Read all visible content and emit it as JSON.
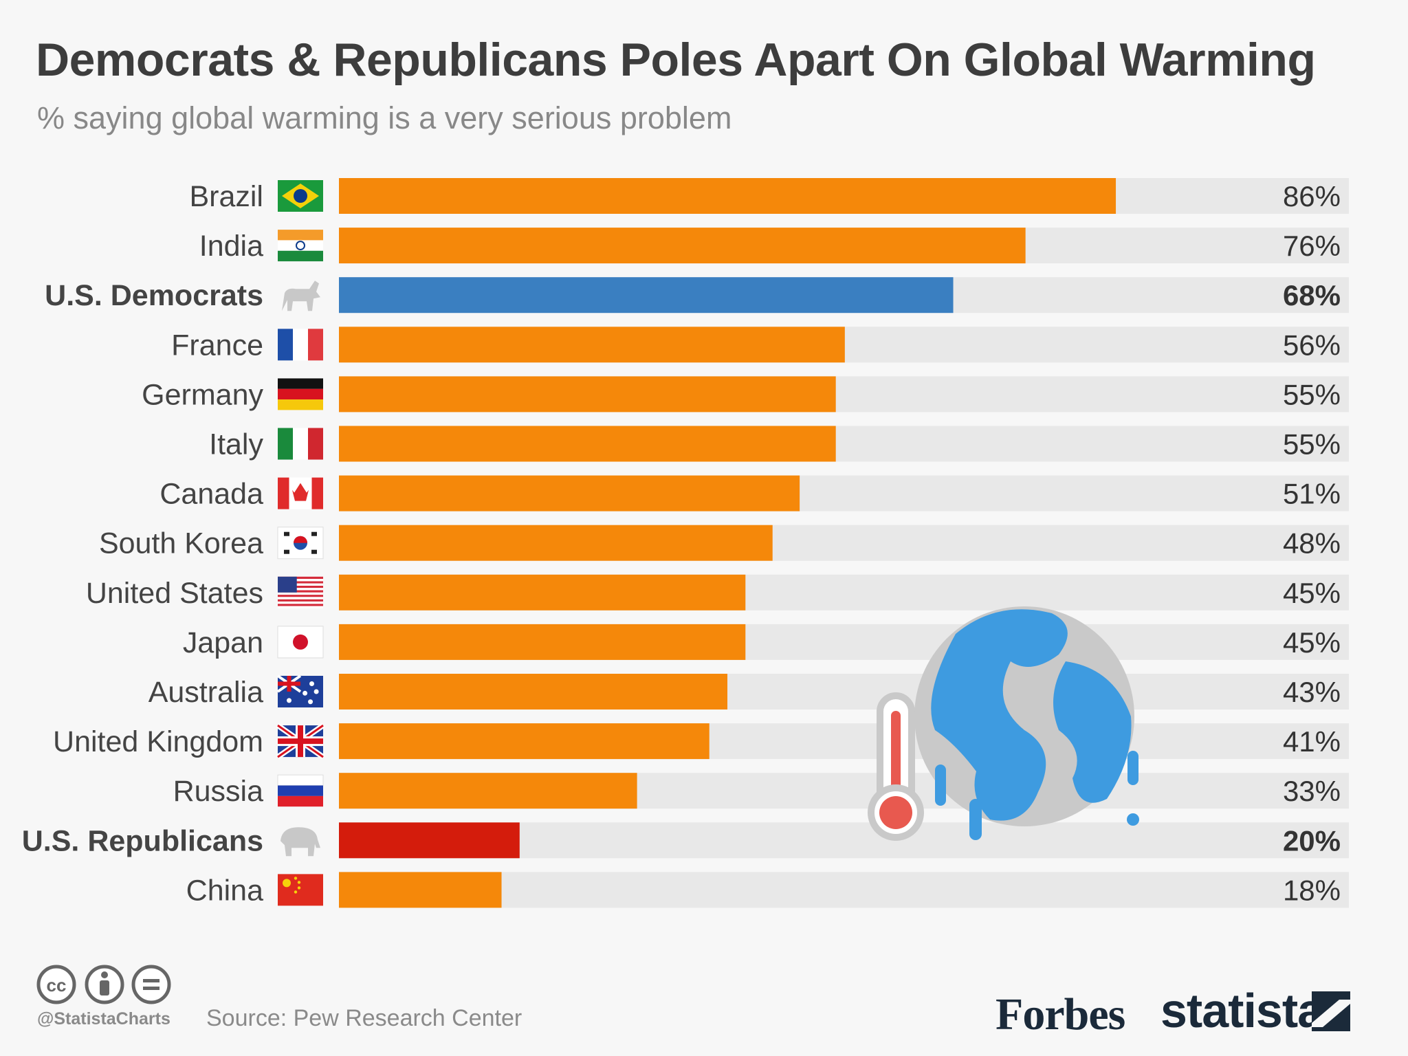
{
  "header": {
    "title": "Democrats & Republicans Poles Apart On Global Warming",
    "subtitle": "% saying global warming is a very serious problem"
  },
  "footer": {
    "handle": "@StatistaCharts",
    "source": "Source: Pew Research Center",
    "forbes": "Forbes",
    "statista": "statista"
  },
  "colors": {
    "default_bar": "#f5880a",
    "democrats_bar": "#3a7fc1",
    "republicans_bar": "#d41c0c",
    "track": "#e8e8e8"
  },
  "chart_data": {
    "type": "bar",
    "orientation": "horizontal",
    "title": "Democrats & Republicans Poles Apart On Global Warming",
    "subtitle": "% saying global warming is a very serious problem",
    "xlim": [
      0,
      100
    ],
    "unit": "%",
    "categories": [
      {
        "label": "Brazil",
        "value": 86,
        "value_label": "86%",
        "flag": "brazil-flag",
        "highlight": ""
      },
      {
        "label": "India",
        "value": 76,
        "value_label": "76%",
        "flag": "india-flag",
        "highlight": ""
      },
      {
        "label": "U.S. Democrats",
        "value": 68,
        "value_label": "68%",
        "flag": "donkey-icon",
        "highlight": "democrats"
      },
      {
        "label": "France",
        "value": 56,
        "value_label": "56%",
        "flag": "france-flag",
        "highlight": ""
      },
      {
        "label": "Germany",
        "value": 55,
        "value_label": "55%",
        "flag": "germany-flag",
        "highlight": ""
      },
      {
        "label": "Italy",
        "value": 55,
        "value_label": "55%",
        "flag": "italy-flag",
        "highlight": ""
      },
      {
        "label": "Canada",
        "value": 51,
        "value_label": "51%",
        "flag": "canada-flag",
        "highlight": ""
      },
      {
        "label": "South Korea",
        "value": 48,
        "value_label": "48%",
        "flag": "south-korea-flag",
        "highlight": ""
      },
      {
        "label": "United States",
        "value": 45,
        "value_label": "45%",
        "flag": "usa-flag",
        "highlight": ""
      },
      {
        "label": "Japan",
        "value": 45,
        "value_label": "45%",
        "flag": "japan-flag",
        "highlight": ""
      },
      {
        "label": "Australia",
        "value": 43,
        "value_label": "43%",
        "flag": "australia-flag",
        "highlight": ""
      },
      {
        "label": "United Kingdom",
        "value": 41,
        "value_label": "41%",
        "flag": "uk-flag",
        "highlight": ""
      },
      {
        "label": "Russia",
        "value": 33,
        "value_label": "33%",
        "flag": "russia-flag",
        "highlight": ""
      },
      {
        "label": "U.S. Republicans",
        "value": 20,
        "value_label": "20%",
        "flag": "elephant-icon",
        "highlight": "republicans"
      },
      {
        "label": "China",
        "value": 18,
        "value_label": "18%",
        "flag": "china-flag",
        "highlight": ""
      }
    ]
  }
}
